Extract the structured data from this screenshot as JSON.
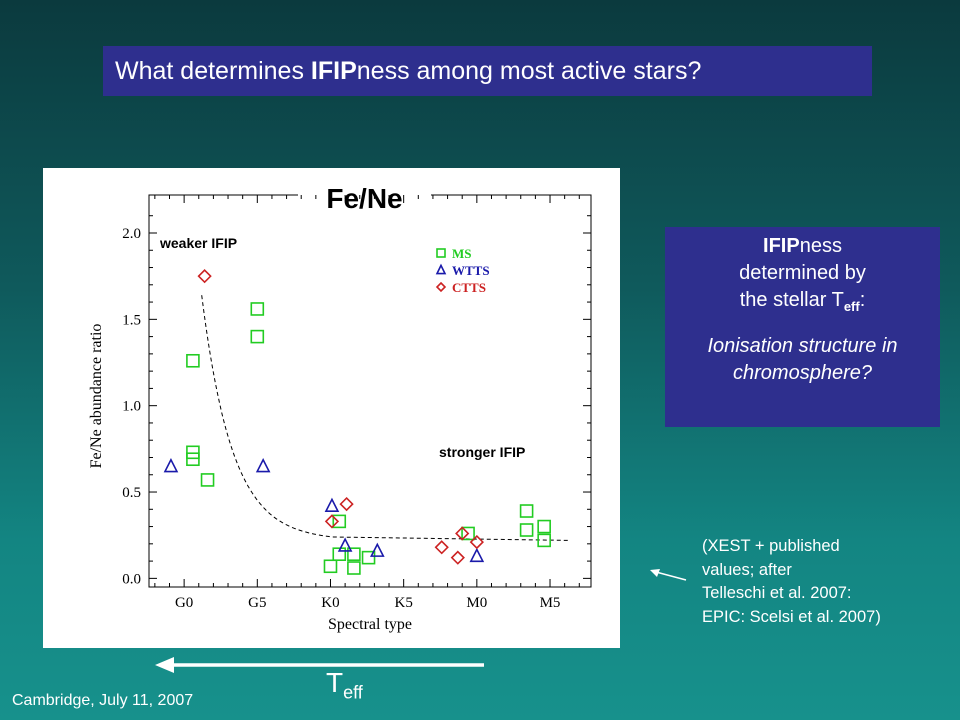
{
  "slide": {
    "title_pre": "What determines ",
    "title_bold": "IFIP",
    "title_post": "ness among most active stars?",
    "info_bold": "IFIP",
    "info_line1_rest": "ness",
    "info_line2": "determined by",
    "info_line3_pre": "the stellar T",
    "info_line3_sub": "eff",
    "info_line3_post": ":",
    "info_line4": "Ionisation structure in",
    "info_line5": "chromosphere?",
    "note_lines": [
      "(XEST + published",
      "values;  after",
      "Telleschi et al. 2007:",
      "EPIC: Scelsi et al. 2007)"
    ],
    "teff_main": "T",
    "teff_sub": "eff",
    "footer": "Cambridge, July 11, 2007"
  },
  "chart_data": {
    "type": "scatter",
    "title": "Fe/Ne",
    "xlabel": "Spectral type",
    "ylabel": "Fe/Ne abundance ratio",
    "x_ticks": [
      "G0",
      "G5",
      "K0",
      "K5",
      "M0",
      "M5"
    ],
    "x_tick_values": [
      0,
      5,
      10,
      15,
      20,
      25
    ],
    "xlim": [
      -2.4,
      27.8
    ],
    "y_ticks": [
      "0.0",
      "0.5",
      "1.0",
      "1.5",
      "2.0"
    ],
    "y_tick_values": [
      0,
      0.5,
      1.0,
      1.5,
      2.0
    ],
    "ylim": [
      -0.05,
      2.22
    ],
    "annotations": {
      "weaker": "weaker IFIP",
      "stronger": "stronger IFIP"
    },
    "legend": {
      "placement": "top-right",
      "entries": [
        "MS",
        "WTTS",
        "CTTS"
      ]
    },
    "series": [
      {
        "name": "MS",
        "color": "#22cc22",
        "marker": "square",
        "x": [
          0.6,
          0.6,
          0.6,
          1.6,
          5.0,
          5.0,
          10.0,
          10.6,
          10.6,
          11.6,
          11.6,
          12.6,
          19.4,
          23.4,
          23.4,
          24.6,
          24.6
        ],
        "y": [
          1.26,
          0.73,
          0.69,
          0.57,
          1.56,
          1.4,
          0.07,
          0.33,
          0.14,
          0.14,
          0.06,
          0.12,
          0.26,
          0.39,
          0.28,
          0.3,
          0.22
        ]
      },
      {
        "name": "WTTS",
        "color": "#1a1aaa",
        "marker": "triangle",
        "x": [
          -0.9,
          5.4,
          10.1,
          11.0,
          13.2,
          20.0
        ],
        "y": [
          0.65,
          0.65,
          0.42,
          0.19,
          0.16,
          0.13
        ]
      },
      {
        "name": "CTTS",
        "color": "#cc2222",
        "marker": "diamond",
        "x": [
          1.4,
          10.1,
          11.1,
          17.6,
          18.7,
          19.0,
          20.0
        ],
        "y": [
          1.75,
          0.33,
          0.43,
          0.18,
          0.12,
          0.26,
          0.21
        ]
      }
    ],
    "curve": {
      "style": "dashed",
      "y_plateau": 0.22
    }
  },
  "colors": {
    "title_box": "#2e2f8e",
    "panel": "#ffffff"
  }
}
